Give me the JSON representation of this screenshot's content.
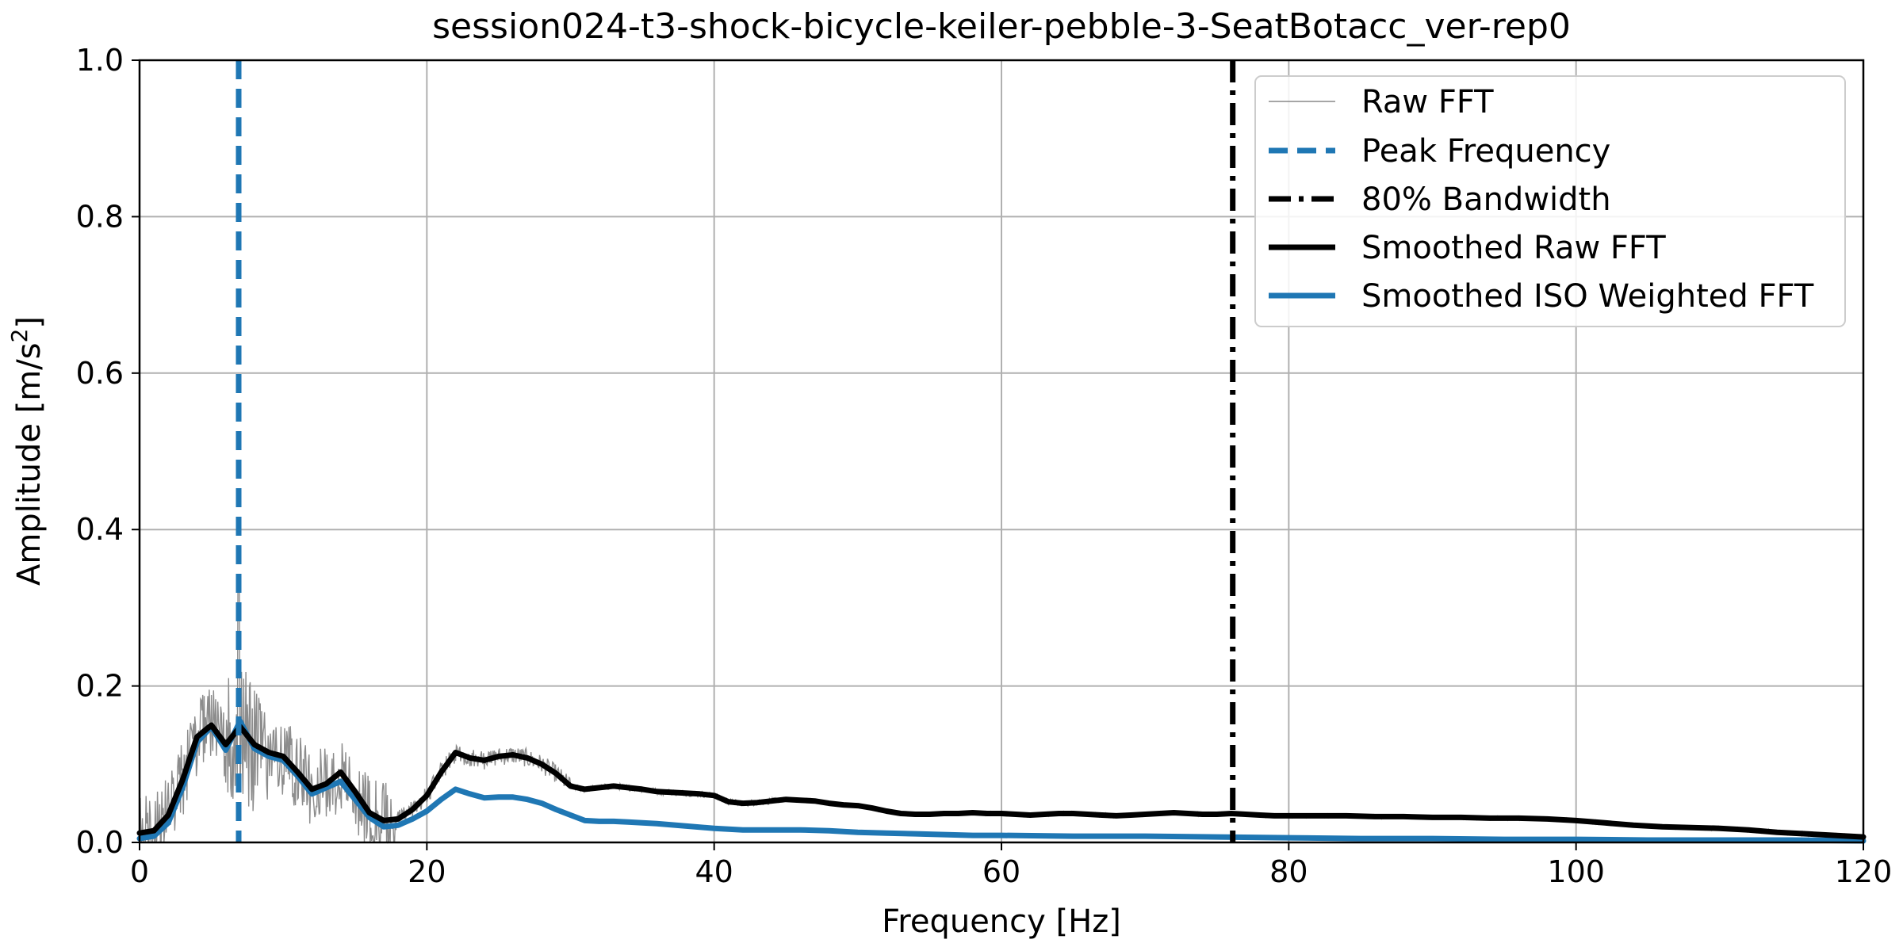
{
  "chart_data": {
    "type": "line",
    "title": "session024-t3-shock-bicycle-keiler-pebble-3-SeatBotacc_ver-rep0",
    "xlabel": "Frequency [Hz]",
    "ylabel": "Amplitude [m/s²]",
    "xlim": [
      0,
      120
    ],
    "ylim": [
      0,
      1.0
    ],
    "xticks": [
      0,
      20,
      40,
      60,
      80,
      100,
      120
    ],
    "yticks": [
      0.0,
      0.2,
      0.4,
      0.6,
      0.8,
      1.0
    ],
    "xtick_labels": [
      "0",
      "20",
      "40",
      "60",
      "80",
      "100",
      "120"
    ],
    "ytick_labels": [
      "0.0",
      "0.2",
      "0.4",
      "0.6",
      "0.8",
      "1.0"
    ],
    "grid": true,
    "legend_position": "top-right",
    "legend": [
      "Raw FFT",
      "Peak Frequency",
      "80% Bandwidth",
      "Smoothed Raw FFT",
      "Smoothed ISO Weighted FFT"
    ],
    "peak_frequency": 6.9,
    "bandwidth_80": 76.1,
    "series": [
      {
        "name": "Smoothed Raw FFT",
        "color": "#000000",
        "x": [
          0,
          1,
          2,
          3,
          4,
          5,
          6,
          7,
          8,
          9,
          10,
          11,
          12,
          13,
          14,
          15,
          16,
          17,
          18,
          19,
          20,
          21,
          22,
          23,
          24,
          25,
          26,
          27,
          28,
          29,
          30,
          31,
          32,
          33,
          34,
          35,
          36,
          37,
          38,
          39,
          40,
          41,
          42,
          43,
          44,
          45,
          46,
          47,
          48,
          49,
          50,
          51,
          52,
          53,
          54,
          55,
          56,
          57,
          58,
          59,
          60,
          61,
          62,
          63,
          64,
          65,
          66,
          67,
          68,
          69,
          70,
          71,
          72,
          73,
          74,
          75,
          76,
          77,
          78,
          79,
          80,
          82,
          84,
          86,
          88,
          90,
          92,
          94,
          96,
          98,
          100,
          102,
          104,
          106,
          108,
          110,
          112,
          114,
          116,
          118,
          120
        ],
        "y": [
          0.012,
          0.015,
          0.035,
          0.08,
          0.135,
          0.15,
          0.125,
          0.148,
          0.125,
          0.115,
          0.11,
          0.09,
          0.068,
          0.075,
          0.09,
          0.065,
          0.038,
          0.028,
          0.03,
          0.042,
          0.06,
          0.09,
          0.115,
          0.108,
          0.105,
          0.11,
          0.112,
          0.108,
          0.1,
          0.088,
          0.072,
          0.068,
          0.07,
          0.072,
          0.07,
          0.068,
          0.065,
          0.064,
          0.063,
          0.062,
          0.06,
          0.052,
          0.05,
          0.051,
          0.053,
          0.055,
          0.054,
          0.053,
          0.05,
          0.048,
          0.047,
          0.044,
          0.04,
          0.037,
          0.036,
          0.036,
          0.037,
          0.037,
          0.038,
          0.037,
          0.037,
          0.036,
          0.035,
          0.036,
          0.037,
          0.037,
          0.036,
          0.035,
          0.034,
          0.035,
          0.036,
          0.037,
          0.038,
          0.037,
          0.036,
          0.036,
          0.037,
          0.036,
          0.035,
          0.034,
          0.034,
          0.034,
          0.034,
          0.033,
          0.033,
          0.032,
          0.032,
          0.031,
          0.031,
          0.03,
          0.028,
          0.025,
          0.022,
          0.02,
          0.019,
          0.018,
          0.016,
          0.013,
          0.011,
          0.009,
          0.007
        ]
      },
      {
        "name": "Smoothed ISO Weighted FFT",
        "color": "#1f77b4",
        "x": [
          0,
          1,
          2,
          3,
          4,
          5,
          6,
          7,
          8,
          9,
          10,
          11,
          12,
          13,
          14,
          15,
          16,
          17,
          18,
          19,
          20,
          21,
          22,
          23,
          24,
          25,
          26,
          27,
          28,
          29,
          30,
          31,
          32,
          33,
          34,
          35,
          36,
          38,
          40,
          42,
          44,
          46,
          48,
          50,
          52,
          54,
          56,
          58,
          60,
          65,
          70,
          75,
          80,
          85,
          90,
          95,
          100,
          105,
          110,
          115,
          120
        ],
        "y": [
          0.005,
          0.008,
          0.025,
          0.07,
          0.128,
          0.148,
          0.118,
          0.155,
          0.12,
          0.11,
          0.105,
          0.085,
          0.062,
          0.07,
          0.078,
          0.055,
          0.032,
          0.02,
          0.022,
          0.03,
          0.04,
          0.055,
          0.068,
          0.062,
          0.057,
          0.058,
          0.058,
          0.055,
          0.05,
          0.042,
          0.035,
          0.028,
          0.027,
          0.027,
          0.026,
          0.025,
          0.024,
          0.021,
          0.018,
          0.016,
          0.016,
          0.016,
          0.015,
          0.013,
          0.012,
          0.011,
          0.01,
          0.009,
          0.009,
          0.008,
          0.008,
          0.007,
          0.006,
          0.005,
          0.005,
          0.004,
          0.004,
          0.003,
          0.003,
          0.003,
          0.002
        ]
      }
    ]
  }
}
